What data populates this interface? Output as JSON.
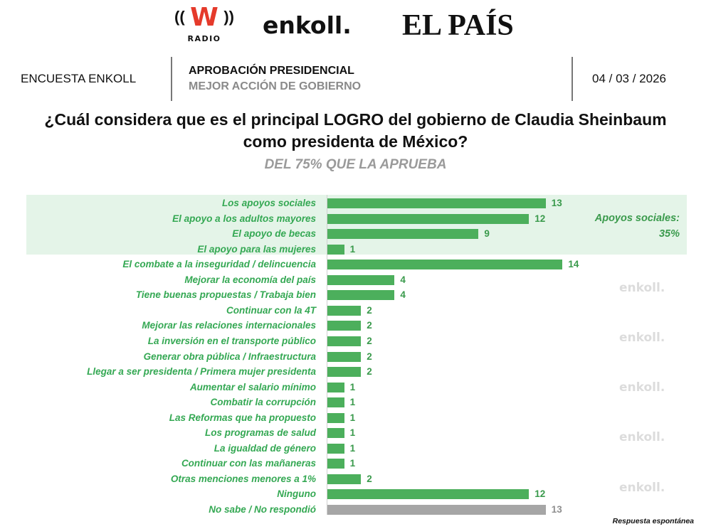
{
  "logos": {
    "wradio": {
      "letter": "W",
      "sub": "RADIO",
      "waves_left": "((",
      "waves_right": "))"
    },
    "enkoll": "enkoll.",
    "elpais": "EL PAÍS"
  },
  "header": {
    "left": "ENCUESTA ENKOLL",
    "title": "APROBACIÓN PRESIDENCIAL",
    "subtitle": "MEJOR ACCIÓN DE GOBIERNO",
    "date": "04 / 03 / 2026"
  },
  "question": {
    "line1": "¿Cuál considera que es el principal LOGRO del gobierno de Claudia Sheinbaum",
    "line2": "como presidenta de México?",
    "sub": "DEL 75% QUE LA APRUEBA"
  },
  "watermark_text": "enkoll.",
  "colors": {
    "bar": "#4caf5c",
    "bar_gray": "#a6a6a6",
    "label": "#34a853",
    "highlight": "#e4f4e8"
  },
  "chart_data": {
    "type": "bar",
    "orientation": "horizontal",
    "title": "¿Cuál considera que es el principal LOGRO del gobierno de Claudia Sheinbaum como presidenta de México?",
    "subtitle": "DEL 75% QUE LA APRUEBA",
    "xlabel": "",
    "ylabel": "",
    "xlim": [
      0,
      14
    ],
    "grid": false,
    "categories": [
      "Los apoyos sociales",
      "El apoyo a los adultos mayores",
      "El apoyo de becas",
      "El apoyo para las mujeres",
      "El combate a la inseguridad / delincuencia",
      "Mejorar la economía del país",
      "Tiene buenas propuestas / Trabaja bien",
      "Continuar con la 4T",
      "Mejorar las relaciones internacionales",
      "La inversión en el transporte público",
      "Generar obra pública / Infraestructura",
      "Llegar a ser presidenta / Primera mujer presidenta",
      "Aumentar el salario mínimo",
      "Combatir la corrupción",
      "Las Reformas que ha propuesto",
      "Los programas de salud",
      "La igualdad de género",
      "Continuar con las mañaneras",
      "Otras menciones menores a 1%",
      "Ninguno",
      "No sabe / No respondió"
    ],
    "values": [
      13,
      12,
      9,
      1,
      14,
      4,
      4,
      2,
      2,
      2,
      2,
      2,
      1,
      1,
      1,
      1,
      1,
      1,
      2,
      12,
      13
    ],
    "gray_categories": [
      "No sabe / No respondió"
    ],
    "highlight_group": {
      "categories": [
        "Los apoyos sociales",
        "El apoyo a los adultos mayores",
        "El apoyo de becas",
        "El apoyo para las mujeres"
      ],
      "label": "Apoyos sociales:",
      "value": "35%"
    },
    "footnote": "Respuesta espontánea"
  }
}
